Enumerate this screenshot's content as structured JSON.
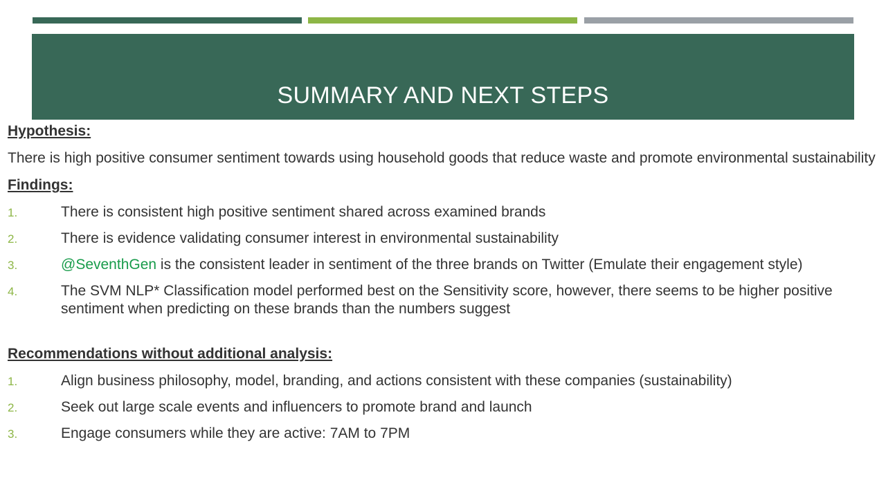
{
  "colors": {
    "bar_dark_green": "#386857",
    "bar_light_green": "#8db646",
    "bar_gray": "#9aa0a6",
    "title_band": "#386857",
    "list_number": "#8db646",
    "mention_highlight": "#179b4a"
  },
  "title": "SUMMARY AND NEXT STEPS",
  "hypothesis": {
    "heading": "Hypothesis:",
    "text": "There is high positive consumer sentiment towards using household goods that reduce waste and promote environmental sustainability"
  },
  "findings": {
    "heading": "Findings:",
    "items": [
      {
        "num": "1.",
        "text": "There is consistent high positive sentiment shared across examined brands"
      },
      {
        "num": "2.",
        "text": "There is evidence validating consumer interest in environmental sustainability"
      },
      {
        "num": "3.",
        "mention": "@SeventhGen",
        "text": " is the consistent leader in sentiment of the three brands on Twitter (Emulate their engagement style)"
      },
      {
        "num": "4.",
        "text": "The SVM NLP* Classification model performed best on the Sensitivity score, however, there seems to be higher positive sentiment when predicting on these brands than the numbers suggest"
      }
    ]
  },
  "recommendations": {
    "heading": "Recommendations without additional analysis:",
    "items": [
      {
        "num": "1.",
        "text": "Align business philosophy, model, branding, and actions consistent with these companies (sustainability)"
      },
      {
        "num": "2.",
        "text": "Seek out large scale events and influencers to promote brand and launch"
      },
      {
        "num": "3.",
        "text": "Engage consumers while they are active: 7AM to 7PM"
      }
    ]
  }
}
